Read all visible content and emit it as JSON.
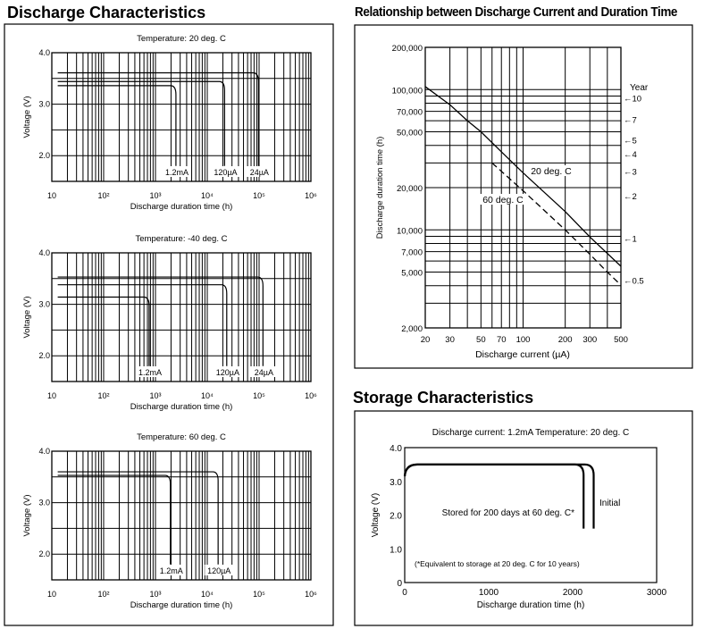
{
  "headings": {
    "discharge": "Discharge Characteristics",
    "relationship": "Relationship between Discharge Current and Duration Time",
    "storage": "Storage Characteristics"
  },
  "chart_data": [
    {
      "type": "line",
      "title": "Temperature: 20 deg. C",
      "xlabel": "Discharge duration time (h)",
      "ylabel": "Voltage (V)",
      "xscale": "log",
      "xlim": [
        10,
        1000000
      ],
      "ylim": [
        1.5,
        4.0
      ],
      "xticks": [
        "10",
        "10²",
        "10³",
        "10⁴",
        "10⁵",
        "10⁶"
      ],
      "yticks": [
        "4.0",
        "3.0",
        "2.0"
      ],
      "series": [
        {
          "name": "1.2mA",
          "plateau_V": 3.4,
          "end_h": 2300
        },
        {
          "name": "120µA",
          "plateau_V": 3.48,
          "end_h": 20000
        },
        {
          "name": "24µA",
          "plateau_V": 3.65,
          "end_h": 90000
        }
      ]
    },
    {
      "type": "line",
      "title": "Temperature: -40 deg. C",
      "xlabel": "Discharge duration time (h)",
      "ylabel": "Voltage (V)",
      "xscale": "log",
      "xlim": [
        10,
        1000000
      ],
      "ylim": [
        1.5,
        4.0
      ],
      "xticks": [
        "10",
        "10²",
        "10³",
        "10⁴",
        "10⁵",
        "10⁶"
      ],
      "yticks": [
        "4.0",
        "3.0",
        "2.0"
      ],
      "series": [
        {
          "name": "1.2mA",
          "plateau_V": 3.18,
          "end_h": 700
        },
        {
          "name": "120µA",
          "plateau_V": 3.42,
          "end_h": 22000
        },
        {
          "name": "24µA",
          "plateau_V": 3.57,
          "end_h": 110000
        }
      ]
    },
    {
      "type": "line",
      "title": "Temperature: 60 deg. C",
      "xlabel": "Discharge duration time (h)",
      "ylabel": "Voltage (V)",
      "xscale": "log",
      "xlim": [
        10,
        1000000
      ],
      "ylim": [
        1.5,
        4.0
      ],
      "xticks": [
        "10",
        "10²",
        "10³",
        "10⁴",
        "10⁵",
        "10⁶"
      ],
      "yticks": [
        "4.0",
        "3.0",
        "2.0"
      ],
      "series": [
        {
          "name": "1.2mA",
          "plateau_V": 3.57,
          "end_h": 1800
        },
        {
          "name": "120µA",
          "plateau_V": 3.64,
          "end_h": 15000
        }
      ]
    },
    {
      "type": "line",
      "title": "Relationship between Discharge Current and Duration Time",
      "xlabel": "Discharge current  (µA)",
      "ylabel": "Discharge duration time (h)",
      "xscale": "log",
      "yscale": "log",
      "xlim": [
        20,
        500
      ],
      "ylim": [
        2000,
        200000
      ],
      "xticks": [
        {
          "v": 20,
          "label": "20"
        },
        {
          "v": 30,
          "label": "30"
        },
        {
          "v": 50,
          "label": "50"
        },
        {
          "v": 70,
          "label": "70"
        },
        {
          "v": 100,
          "label": "100"
        },
        {
          "v": 200,
          "label": "200"
        },
        {
          "v": 300,
          "label": "300"
        },
        {
          "v": 500,
          "label": "500"
        }
      ],
      "yticks": [
        {
          "v": 2000,
          "label": "2,000"
        },
        {
          "v": 5000,
          "label": "5,000"
        },
        {
          "v": 7000,
          "label": "7,000"
        },
        {
          "v": 10000,
          "label": "10,000"
        },
        {
          "v": 20000,
          "label": "20,000"
        },
        {
          "v": 50000,
          "label": "50,000"
        },
        {
          "v": 70000,
          "label": "70,000"
        },
        {
          "v": 100000,
          "label": "100,000"
        },
        {
          "v": 200000,
          "label": "200,000"
        }
      ],
      "year_axis_title": "Year",
      "year_markers": [
        {
          "label": "←10",
          "hours": 87600
        },
        {
          "label": "←7",
          "hours": 61320
        },
        {
          "label": "←5",
          "hours": 43800
        },
        {
          "label": "←4",
          "hours": 35040
        },
        {
          "label": "←3",
          "hours": 26280
        },
        {
          "label": "←2",
          "hours": 17520
        },
        {
          "label": "←1",
          "hours": 8760
        },
        {
          "label": "←0.5",
          "hours": 4380
        }
      ],
      "series": [
        {
          "name": "20 deg. C",
          "style": "solid",
          "x": [
            20,
            30,
            40,
            50,
            70,
            100,
            200,
            300,
            500
          ],
          "y": [
            105000,
            78000,
            60000,
            50000,
            36000,
            25500,
            13500,
            8900,
            5500
          ]
        },
        {
          "name": "60 deg. C",
          "style": "dashed",
          "x": [
            60,
            100,
            200,
            300,
            400,
            480
          ],
          "y": [
            30000,
            19000,
            10000,
            6700,
            5000,
            4200
          ]
        }
      ]
    },
    {
      "type": "line",
      "title": "Discharge current: 1.2mA   Temperature: 20 deg. C",
      "xlabel": "Discharge duration time (h)",
      "ylabel": "Voltage (V)",
      "xlim": [
        0,
        3000
      ],
      "ylim": [
        0,
        4.0
      ],
      "xticks": [
        {
          "v": 0,
          "label": "0"
        },
        {
          "v": 1000,
          "label": "1000"
        },
        {
          "v": 2000,
          "label": "2000"
        },
        {
          "v": 3000,
          "label": "3000"
        }
      ],
      "yticks": [
        {
          "v": 0,
          "label": "0"
        },
        {
          "v": 1,
          "label": "1.0"
        },
        {
          "v": 2,
          "label": "2.0"
        },
        {
          "v": 3,
          "label": "3.0"
        },
        {
          "v": 4,
          "label": "4.0"
        }
      ],
      "note": "(*Equivalent to storage at 20 deg. C for 10 years)",
      "series": [
        {
          "name": "Initial",
          "start_V": 3.15,
          "plateau_V": 3.5,
          "end_h": 2250,
          "cutoff_V": 1.6
        },
        {
          "name": "Stored for 200 days at 60 deg. C*",
          "start_V": 3.15,
          "plateau_V": 3.5,
          "end_h": 2130,
          "cutoff_V": 1.6
        }
      ]
    }
  ]
}
